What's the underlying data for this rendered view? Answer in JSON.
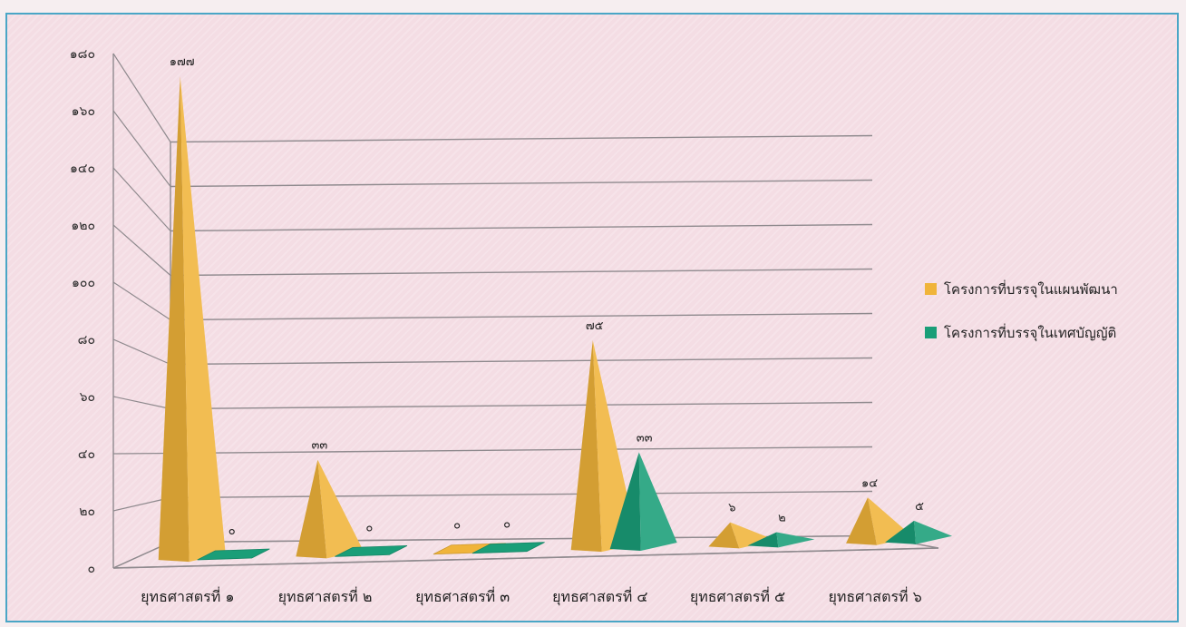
{
  "chart_data": {
    "type": "bar",
    "subtype": "3d-pyramid",
    "categories": [
      "ยุทธศาสตรที่ ๑",
      "ยุทธศาสตรที่ ๒",
      "ยุทธศาสตรที่ ๓",
      "ยุทธศาสตรที่ ๔",
      "ยุทธศาสตรที่ ๕",
      "ยุทธศาสตรที่ ๖"
    ],
    "series": [
      {
        "name": "โครงการที่บรรจุในแผนพัฒนา",
        "color": "#f0b43a",
        "values": [
          177,
          33,
          0,
          75,
          6,
          14
        ],
        "labels": [
          "๑๗๗",
          "๓๓",
          "๐",
          "๗๕",
          "๖",
          "๑๔"
        ]
      },
      {
        "name": "โครงการที่บรรจุในเทศบัญญัติ",
        "color": "#1a9e78",
        "values": [
          0,
          0,
          0,
          33,
          2,
          5
        ],
        "labels": [
          "๐",
          "๐",
          "๐",
          "๓๓",
          "๒",
          "๕"
        ]
      }
    ],
    "y_ticks": [
      {
        "value": 0,
        "label": "๐"
      },
      {
        "value": 20,
        "label": "๒๐"
      },
      {
        "value": 40,
        "label": "๔๐"
      },
      {
        "value": 60,
        "label": "๖๐"
      },
      {
        "value": 80,
        "label": "๘๐"
      },
      {
        "value": 100,
        "label": "๑๐๐"
      },
      {
        "value": 120,
        "label": "๑๒๐"
      },
      {
        "value": 140,
        "label": "๑๔๐"
      },
      {
        "value": 160,
        "label": "๑๖๐"
      },
      {
        "value": 180,
        "label": "๑๘๐"
      }
    ],
    "ylim": [
      0,
      180
    ],
    "grid": true,
    "legend_position": "right",
    "title": "",
    "xlabel": "",
    "ylabel": ""
  }
}
